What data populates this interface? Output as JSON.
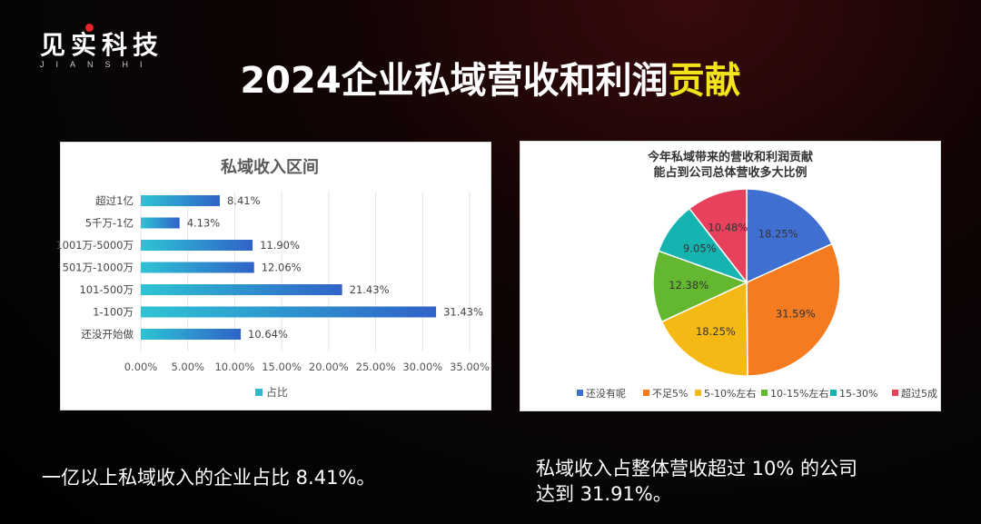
{
  "logo": {
    "name_cn": "见实科技",
    "name_en": "JIANSHI"
  },
  "title": {
    "main": "2024企业私域营收和利润",
    "highlight": "贡献"
  },
  "colors": {
    "background": "#000000",
    "highlight": "#f3e31b",
    "logo_dot": "#e8262a"
  },
  "chart_data": [
    {
      "type": "bar",
      "orientation": "horizontal",
      "title": "私域收入区间",
      "categories": [
        "超过1亿",
        "5千万-1亿",
        "1001万-5000万",
        "501万-1000万",
        "101-500万",
        "1-100万",
        "还没开始做"
      ],
      "series": [
        {
          "name": "占比",
          "values": [
            8.41,
            4.13,
            11.9,
            12.06,
            21.43,
            31.43,
            10.64
          ],
          "labels": [
            "8.41%",
            "4.13%",
            "11.90%",
            "12.06%",
            "21.43%",
            "31.43%",
            "10.64%"
          ]
        }
      ],
      "xlim": [
        0,
        35
      ],
      "xticks": [
        "0.00%",
        "5.00%",
        "10.00%",
        "15.00%",
        "20.00%",
        "25.00%",
        "30.00%",
        "35.00%"
      ],
      "grid": true,
      "legend": "bottom",
      "bar_color": "#2f7fd1"
    },
    {
      "type": "pie",
      "title_line1": "今年私域带来的营收和利润贡献",
      "title_line2": "能占到公司总体营收多大比例",
      "categories": [
        "还没有呢",
        "不足5%",
        "5-10%左右",
        "10-15%左右",
        "15-30%",
        "超过5成"
      ],
      "values": [
        18.25,
        31.59,
        18.25,
        12.38,
        9.05,
        10.48
      ],
      "labels": [
        "18.25%",
        "31.59%",
        "18.25%",
        "12.38%",
        "9.05%",
        "10.48%"
      ],
      "colors": [
        "#3f6fd0",
        "#f47b20",
        "#f5b916",
        "#63b82f",
        "#15b4b0",
        "#e8415e"
      ],
      "legend": "bottom"
    }
  ],
  "captions": {
    "left": "一亿以上私域收入的企业占比 8.41%。",
    "right_line1": "私域收入占整体营收超过 10% 的公司",
    "right_line2": "达到 31.91%。"
  }
}
